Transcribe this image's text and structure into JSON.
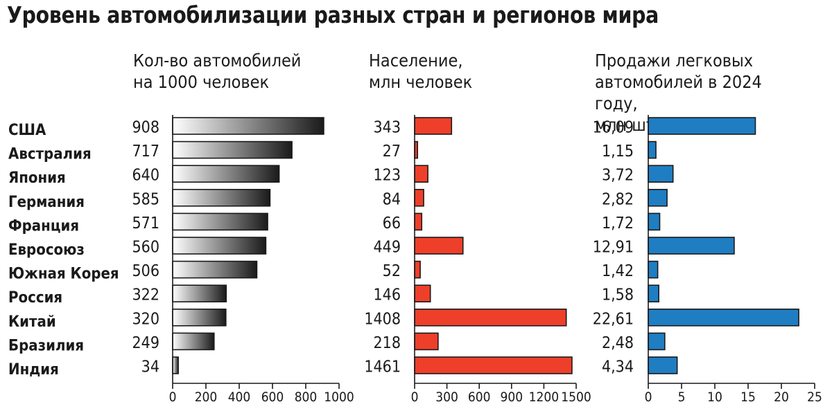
{
  "title": "Уровень автомобилизации разных стран и регионов мира",
  "colors": {
    "cars_gradient_start": "#ffffff",
    "cars_gradient_end": "#1a1a1a",
    "population": "#ee3f2a",
    "sales": "#1f7dc2"
  },
  "chart_data": [
    {
      "type": "bar",
      "title": "Кол-во автомобилей\nна 1000 человек",
      "categories": [
        "США",
        "Австралия",
        "Япония",
        "Германия",
        "Франция",
        "Евросоюз",
        "Южная Корея",
        "Россия",
        "Китай",
        "Бразилия",
        "Индия"
      ],
      "values": [
        908,
        717,
        640,
        585,
        571,
        560,
        506,
        322,
        320,
        249,
        34
      ],
      "value_labels": [
        "908",
        "717",
        "640",
        "585",
        "571",
        "560",
        "506",
        "322",
        "320",
        "249",
        "34"
      ],
      "xlim": [
        0,
        1000
      ],
      "ticks": [
        0,
        200,
        400,
        600,
        800,
        1000
      ],
      "tick_labels": [
        "0",
        "200",
        "400",
        "600",
        "800",
        "1000"
      ]
    },
    {
      "type": "bar",
      "title": "Население,\nмлн человек",
      "categories": [
        "США",
        "Австралия",
        "Япония",
        "Германия",
        "Франция",
        "Евросоюз",
        "Южная Корея",
        "Россия",
        "Китай",
        "Бразилия",
        "Индия"
      ],
      "values": [
        343,
        27,
        123,
        84,
        66,
        449,
        52,
        146,
        1408,
        218,
        1461
      ],
      "value_labels": [
        "343",
        "27",
        "123",
        "84",
        "66",
        "449",
        "52",
        "146",
        "1408",
        "218",
        "1461"
      ],
      "xlim": [
        0,
        1500
      ],
      "ticks": [
        0,
        300,
        600,
        900,
        1200,
        1500
      ],
      "tick_labels": [
        "0",
        "300",
        "600",
        "900",
        "1200",
        "1500"
      ]
    },
    {
      "type": "bar",
      "title": "Продажи легковых\nавтомобилей в 2024 году,\nмлн штук",
      "categories": [
        "США",
        "Австралия",
        "Япония",
        "Германия",
        "Франция",
        "Евросоюз",
        "Южная Корея",
        "Россия",
        "Китай",
        "Бразилия",
        "Индия"
      ],
      "values": [
        16.09,
        1.15,
        3.72,
        2.82,
        1.72,
        12.91,
        1.42,
        1.58,
        22.61,
        2.48,
        4.34
      ],
      "value_labels": [
        "16,09",
        "1,15",
        "3,72",
        "2,82",
        "1,72",
        "12,91",
        "1,42",
        "1,58",
        "22,61",
        "2,48",
        "4,34"
      ],
      "xlim": [
        0,
        25
      ],
      "ticks": [
        0,
        5,
        10,
        15,
        20,
        25
      ],
      "tick_labels": [
        "0",
        "5",
        "10",
        "15",
        "20",
        "25"
      ]
    }
  ]
}
